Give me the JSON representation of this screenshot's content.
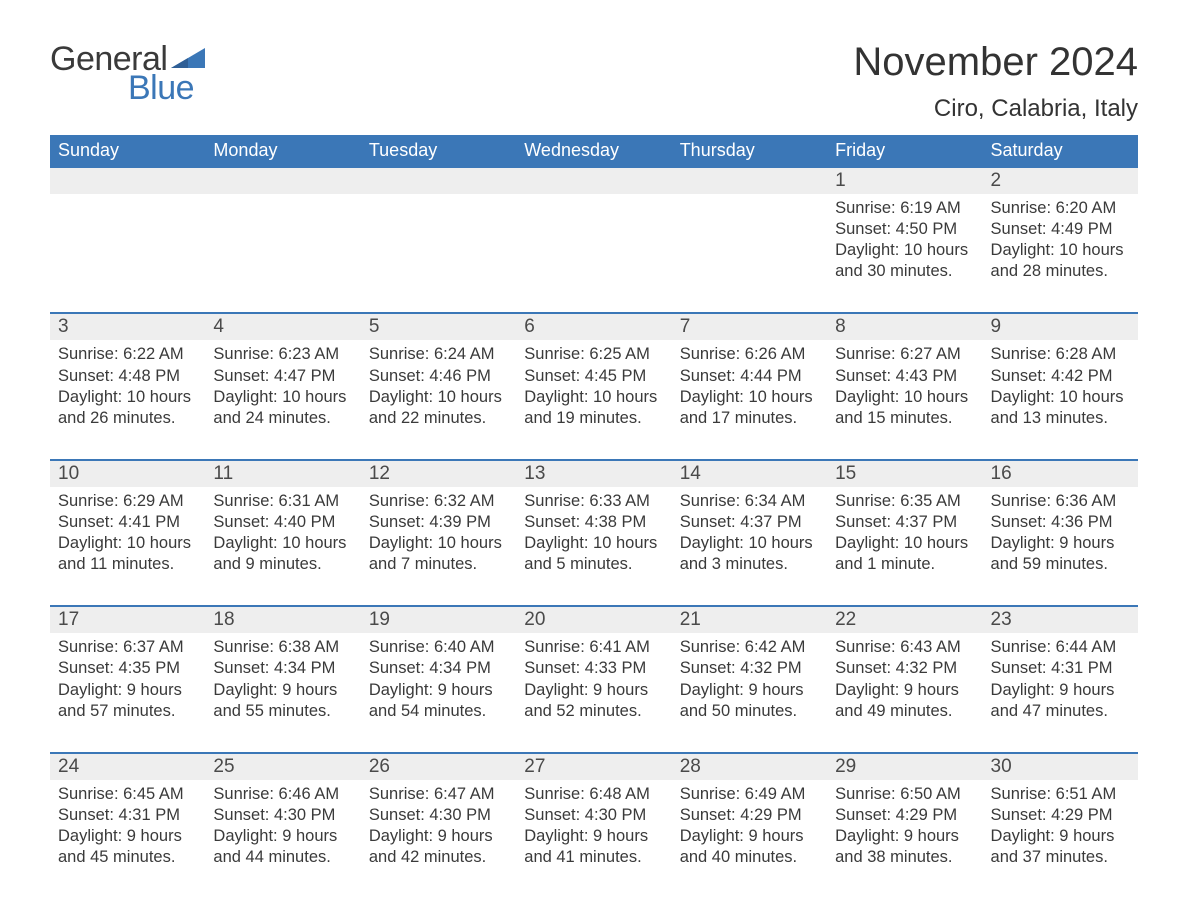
{
  "brand": {
    "word1": "General",
    "word2": "Blue"
  },
  "title": "November 2024",
  "location": "Ciro, Calabria, Italy",
  "colors": {
    "header_bg": "#3b77b7",
    "header_text": "#ffffff",
    "daynum_bg": "#eeeeee",
    "row_border": "#3b77b7",
    "body_text": "#3a3a3a",
    "logo_blue": "#3b77b7",
    "page_bg": "#ffffff"
  },
  "day_headers": [
    "Sunday",
    "Monday",
    "Tuesday",
    "Wednesday",
    "Thursday",
    "Friday",
    "Saturday"
  ],
  "weeks": [
    [
      null,
      null,
      null,
      null,
      null,
      {
        "n": "1",
        "sunrise": "Sunrise: 6:19 AM",
        "sunset": "Sunset: 4:50 PM",
        "daylight": "Daylight: 10 hours and 30 minutes."
      },
      {
        "n": "2",
        "sunrise": "Sunrise: 6:20 AM",
        "sunset": "Sunset: 4:49 PM",
        "daylight": "Daylight: 10 hours and 28 minutes."
      }
    ],
    [
      {
        "n": "3",
        "sunrise": "Sunrise: 6:22 AM",
        "sunset": "Sunset: 4:48 PM",
        "daylight": "Daylight: 10 hours and 26 minutes."
      },
      {
        "n": "4",
        "sunrise": "Sunrise: 6:23 AM",
        "sunset": "Sunset: 4:47 PM",
        "daylight": "Daylight: 10 hours and 24 minutes."
      },
      {
        "n": "5",
        "sunrise": "Sunrise: 6:24 AM",
        "sunset": "Sunset: 4:46 PM",
        "daylight": "Daylight: 10 hours and 22 minutes."
      },
      {
        "n": "6",
        "sunrise": "Sunrise: 6:25 AM",
        "sunset": "Sunset: 4:45 PM",
        "daylight": "Daylight: 10 hours and 19 minutes."
      },
      {
        "n": "7",
        "sunrise": "Sunrise: 6:26 AM",
        "sunset": "Sunset: 4:44 PM",
        "daylight": "Daylight: 10 hours and 17 minutes."
      },
      {
        "n": "8",
        "sunrise": "Sunrise: 6:27 AM",
        "sunset": "Sunset: 4:43 PM",
        "daylight": "Daylight: 10 hours and 15 minutes."
      },
      {
        "n": "9",
        "sunrise": "Sunrise: 6:28 AM",
        "sunset": "Sunset: 4:42 PM",
        "daylight": "Daylight: 10 hours and 13 minutes."
      }
    ],
    [
      {
        "n": "10",
        "sunrise": "Sunrise: 6:29 AM",
        "sunset": "Sunset: 4:41 PM",
        "daylight": "Daylight: 10 hours and 11 minutes."
      },
      {
        "n": "11",
        "sunrise": "Sunrise: 6:31 AM",
        "sunset": "Sunset: 4:40 PM",
        "daylight": "Daylight: 10 hours and 9 minutes."
      },
      {
        "n": "12",
        "sunrise": "Sunrise: 6:32 AM",
        "sunset": "Sunset: 4:39 PM",
        "daylight": "Daylight: 10 hours and 7 minutes."
      },
      {
        "n": "13",
        "sunrise": "Sunrise: 6:33 AM",
        "sunset": "Sunset: 4:38 PM",
        "daylight": "Daylight: 10 hours and 5 minutes."
      },
      {
        "n": "14",
        "sunrise": "Sunrise: 6:34 AM",
        "sunset": "Sunset: 4:37 PM",
        "daylight": "Daylight: 10 hours and 3 minutes."
      },
      {
        "n": "15",
        "sunrise": "Sunrise: 6:35 AM",
        "sunset": "Sunset: 4:37 PM",
        "daylight": "Daylight: 10 hours and 1 minute."
      },
      {
        "n": "16",
        "sunrise": "Sunrise: 6:36 AM",
        "sunset": "Sunset: 4:36 PM",
        "daylight": "Daylight: 9 hours and 59 minutes."
      }
    ],
    [
      {
        "n": "17",
        "sunrise": "Sunrise: 6:37 AM",
        "sunset": "Sunset: 4:35 PM",
        "daylight": "Daylight: 9 hours and 57 minutes."
      },
      {
        "n": "18",
        "sunrise": "Sunrise: 6:38 AM",
        "sunset": "Sunset: 4:34 PM",
        "daylight": "Daylight: 9 hours and 55 minutes."
      },
      {
        "n": "19",
        "sunrise": "Sunrise: 6:40 AM",
        "sunset": "Sunset: 4:34 PM",
        "daylight": "Daylight: 9 hours and 54 minutes."
      },
      {
        "n": "20",
        "sunrise": "Sunrise: 6:41 AM",
        "sunset": "Sunset: 4:33 PM",
        "daylight": "Daylight: 9 hours and 52 minutes."
      },
      {
        "n": "21",
        "sunrise": "Sunrise: 6:42 AM",
        "sunset": "Sunset: 4:32 PM",
        "daylight": "Daylight: 9 hours and 50 minutes."
      },
      {
        "n": "22",
        "sunrise": "Sunrise: 6:43 AM",
        "sunset": "Sunset: 4:32 PM",
        "daylight": "Daylight: 9 hours and 49 minutes."
      },
      {
        "n": "23",
        "sunrise": "Sunrise: 6:44 AM",
        "sunset": "Sunset: 4:31 PM",
        "daylight": "Daylight: 9 hours and 47 minutes."
      }
    ],
    [
      {
        "n": "24",
        "sunrise": "Sunrise: 6:45 AM",
        "sunset": "Sunset: 4:31 PM",
        "daylight": "Daylight: 9 hours and 45 minutes."
      },
      {
        "n": "25",
        "sunrise": "Sunrise: 6:46 AM",
        "sunset": "Sunset: 4:30 PM",
        "daylight": "Daylight: 9 hours and 44 minutes."
      },
      {
        "n": "26",
        "sunrise": "Sunrise: 6:47 AM",
        "sunset": "Sunset: 4:30 PM",
        "daylight": "Daylight: 9 hours and 42 minutes."
      },
      {
        "n": "27",
        "sunrise": "Sunrise: 6:48 AM",
        "sunset": "Sunset: 4:30 PM",
        "daylight": "Daylight: 9 hours and 41 minutes."
      },
      {
        "n": "28",
        "sunrise": "Sunrise: 6:49 AM",
        "sunset": "Sunset: 4:29 PM",
        "daylight": "Daylight: 9 hours and 40 minutes."
      },
      {
        "n": "29",
        "sunrise": "Sunrise: 6:50 AM",
        "sunset": "Sunset: 4:29 PM",
        "daylight": "Daylight: 9 hours and 38 minutes."
      },
      {
        "n": "30",
        "sunrise": "Sunrise: 6:51 AM",
        "sunset": "Sunset: 4:29 PM",
        "daylight": "Daylight: 9 hours and 37 minutes."
      }
    ]
  ]
}
